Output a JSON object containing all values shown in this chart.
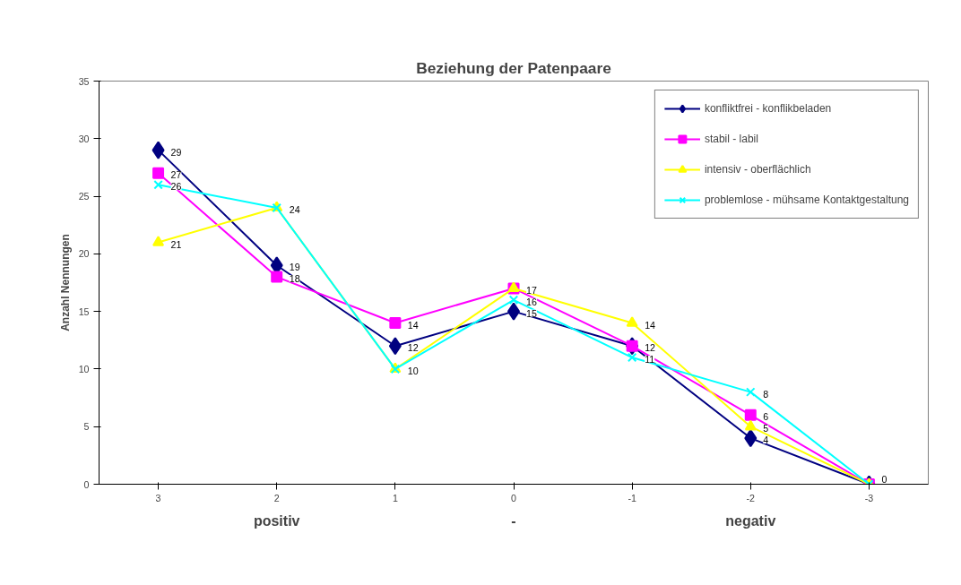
{
  "chart_data": {
    "type": "line",
    "title": "Beziehung der Patenpaare",
    "xlabel": "positiv - negativ",
    "ylabel": "Anzahl Nennungen",
    "categories": [
      "3",
      "2",
      "1",
      "0",
      "-1",
      "-2",
      "-3"
    ],
    "series": [
      {
        "name": "konfliktfrei - konflikbeladen",
        "color": "#000080",
        "marker": "diamond",
        "values": [
          29,
          19,
          12,
          15,
          12,
          4,
          0
        ],
        "value_labels": [
          "29",
          "19",
          "12",
          "15",
          "12",
          "4",
          "0"
        ]
      },
      {
        "name": "stabil - labil",
        "color": "#ff00ff",
        "marker": "square",
        "values": [
          27,
          18,
          14,
          17,
          12,
          6,
          0
        ],
        "value_labels": [
          "27",
          "18",
          "14",
          "17",
          null,
          "6",
          null
        ]
      },
      {
        "name": "intensiv - oberflächlich",
        "color": "#ffff00",
        "marker": "triangle",
        "values": [
          21,
          24,
          10,
          17,
          14,
          5,
          0
        ],
        "value_labels": [
          "21",
          "24",
          "10",
          null,
          "14",
          "5",
          null
        ]
      },
      {
        "name": "problemlose - mühsame Kontaktgestaltung",
        "color": "#00ffff",
        "marker": "cross",
        "values": [
          26,
          24,
          10,
          16,
          11,
          8,
          0
        ],
        "value_labels": [
          "26",
          null,
          null,
          "16",
          "11",
          "8",
          null
        ]
      }
    ],
    "ylim": [
      0,
      35
    ],
    "yticks": [
      0,
      5,
      10,
      15,
      20,
      25,
      30,
      35
    ],
    "legend": "top right",
    "grid": false
  }
}
